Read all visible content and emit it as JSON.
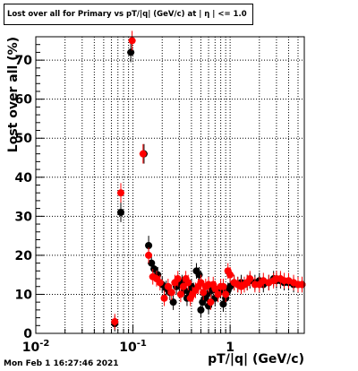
{
  "chart_data": {
    "type": "scatter",
    "title": "Lost over all for Primary vs pT/|q| (GeV/c) at | η | <= 1.0",
    "xlabel": "pT/|q| (GeV/c)",
    "ylabel": "Lost over all (%)",
    "xscale": "log",
    "xlim": [
      0.01,
      5.8
    ],
    "ylim": [
      0,
      76
    ],
    "grid": true,
    "x_ticks": [
      {
        "v": 0.01,
        "label": "10",
        "sup": "-2"
      },
      {
        "v": 0.1,
        "label": "10",
        "sup": "-1"
      },
      {
        "v": 1,
        "label": "1",
        "sup": ""
      }
    ],
    "y_ticks": [
      0,
      10,
      20,
      30,
      40,
      50,
      60,
      70
    ],
    "series": [
      {
        "color": "#000000",
        "points": [
          [
            0.065,
            2.5
          ],
          [
            0.075,
            31
          ],
          [
            0.095,
            72
          ],
          [
            0.13,
            46
          ],
          [
            0.145,
            22.5
          ],
          [
            0.155,
            18
          ],
          [
            0.165,
            16.5
          ],
          [
            0.18,
            15
          ],
          [
            0.2,
            12.5
          ],
          [
            0.22,
            11.5
          ],
          [
            0.24,
            10.5
          ],
          [
            0.26,
            8
          ],
          [
            0.28,
            12
          ],
          [
            0.3,
            12.5
          ],
          [
            0.32,
            13
          ],
          [
            0.34,
            11
          ],
          [
            0.36,
            9
          ],
          [
            0.38,
            10.5
          ],
          [
            0.4,
            12
          ],
          [
            0.42,
            11
          ],
          [
            0.45,
            16
          ],
          [
            0.48,
            15
          ],
          [
            0.5,
            6
          ],
          [
            0.52,
            8
          ],
          [
            0.55,
            9
          ],
          [
            0.58,
            10
          ],
          [
            0.6,
            7
          ],
          [
            0.65,
            11
          ],
          [
            0.7,
            9
          ],
          [
            0.75,
            10
          ],
          [
            0.8,
            11
          ],
          [
            0.85,
            7.5
          ],
          [
            0.9,
            9
          ],
          [
            0.95,
            11
          ],
          [
            1.0,
            12
          ],
          [
            1.1,
            13
          ],
          [
            1.2,
            12.5
          ],
          [
            1.3,
            13
          ],
          [
            1.4,
            12.5
          ],
          [
            1.5,
            13
          ],
          [
            1.6,
            13.5
          ],
          [
            1.8,
            13
          ],
          [
            2.0,
            13.5
          ],
          [
            2.2,
            12.5
          ],
          [
            2.5,
            13
          ],
          [
            2.8,
            14
          ],
          [
            3.0,
            13.5
          ],
          [
            3.3,
            13.5
          ],
          [
            3.6,
            13
          ],
          [
            4.0,
            13
          ],
          [
            4.5,
            12.5
          ],
          [
            5.0,
            12.5
          ],
          [
            5.5,
            12.5
          ]
        ]
      },
      {
        "color": "#ff0000",
        "points": [
          [
            0.065,
            3
          ],
          [
            0.075,
            36
          ],
          [
            0.098,
            75
          ],
          [
            0.127,
            46
          ],
          [
            0.145,
            20
          ],
          [
            0.16,
            14.5
          ],
          [
            0.175,
            14
          ],
          [
            0.19,
            13
          ],
          [
            0.21,
            9
          ],
          [
            0.23,
            12
          ],
          [
            0.25,
            10.5
          ],
          [
            0.27,
            13
          ],
          [
            0.29,
            14
          ],
          [
            0.31,
            10
          ],
          [
            0.33,
            12
          ],
          [
            0.35,
            14
          ],
          [
            0.37,
            13
          ],
          [
            0.39,
            9
          ],
          [
            0.41,
            10
          ],
          [
            0.44,
            11
          ],
          [
            0.47,
            12
          ],
          [
            0.5,
            13
          ],
          [
            0.53,
            10.5
          ],
          [
            0.56,
            12
          ],
          [
            0.6,
            12.5
          ],
          [
            0.63,
            8
          ],
          [
            0.67,
            12.5
          ],
          [
            0.7,
            11.5
          ],
          [
            0.75,
            10
          ],
          [
            0.8,
            12
          ],
          [
            0.85,
            12
          ],
          [
            0.9,
            10
          ],
          [
            0.95,
            16
          ],
          [
            1.0,
            15
          ],
          [
            1.1,
            13
          ],
          [
            1.2,
            12.5
          ],
          [
            1.3,
            12
          ],
          [
            1.4,
            12.5
          ],
          [
            1.5,
            13
          ],
          [
            1.6,
            14
          ],
          [
            1.8,
            12.5
          ],
          [
            2.0,
            12.5
          ],
          [
            2.2,
            13.5
          ],
          [
            2.5,
            13
          ],
          [
            2.8,
            13.5
          ],
          [
            3.0,
            14
          ],
          [
            3.3,
            14
          ],
          [
            3.6,
            13.5
          ],
          [
            4.0,
            13.5
          ],
          [
            4.5,
            13
          ],
          [
            5.0,
            12.5
          ],
          [
            5.5,
            12.5
          ]
        ]
      }
    ]
  },
  "footer": {
    "timestamp": "Mon Feb  1 16:27:46 2021"
  }
}
